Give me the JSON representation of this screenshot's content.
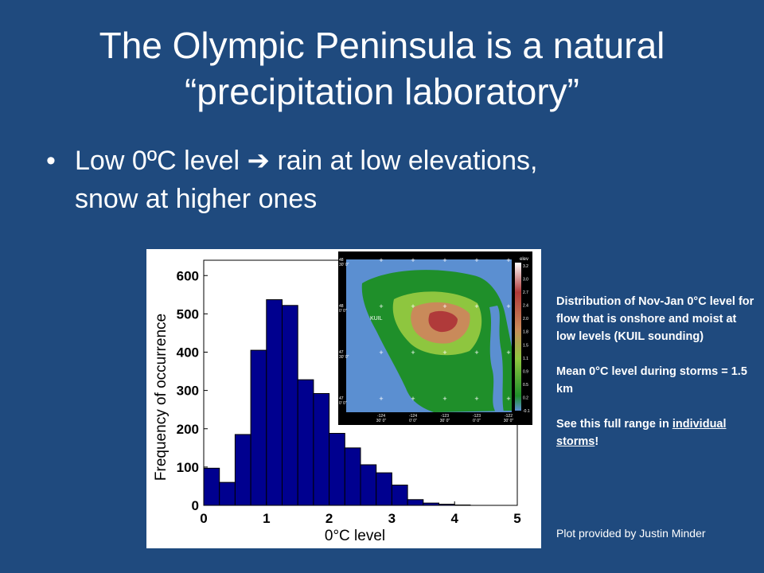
{
  "slide": {
    "title_line1": "The Olympic Peninsula is a natural",
    "title_line2": "“precipitation laboratory”",
    "bullet_symbol": "•",
    "bullet_line1_a": "Low 0ºC level",
    "bullet_arrow": "➔",
    "bullet_line1_b": "rain at low elevations,",
    "bullet_line2": "snow at higher ones"
  },
  "notes": {
    "para1": "Distribution of Nov-Jan 0°C level for flow that is onshore and moist at low levels (KUIL sounding)",
    "para2": "Mean 0°C level during storms = 1.5 km",
    "para3_link": "individual storms",
    "para3_pre": "See this full range in ",
    "para3_post": "!",
    "credit": "Plot provided by Justin Minder"
  },
  "chart_data": {
    "type": "bar",
    "xlabel": "0°C level",
    "ylabel": "Frequency of occurrence",
    "xlim": [
      0,
      5
    ],
    "ylim": [
      0,
      640
    ],
    "xticks": [
      0,
      1,
      2,
      3,
      4,
      5
    ],
    "yticks": [
      0,
      100,
      200,
      300,
      400,
      500,
      600
    ],
    "bin_width": 0.25,
    "bin_starts": [
      0,
      0.25,
      0.5,
      0.75,
      1.0,
      1.25,
      1.5,
      1.75,
      2.0,
      2.25,
      2.5,
      2.75,
      3.0,
      3.25,
      3.5,
      3.75,
      4.0
    ],
    "values": [
      97,
      60,
      185,
      405,
      537,
      522,
      328,
      292,
      188,
      150,
      106,
      85,
      53,
      15,
      6,
      3,
      1
    ],
    "bar_color": "#00008f",
    "grid": false
  },
  "map_inset": {
    "label_kuil": "KUIL",
    "colorbar_title": "elev",
    "colorbar_ticks": [
      "3.2",
      "3.0",
      "2.7",
      "2.4",
      "2.0",
      "1.8",
      "1.5",
      "1.1",
      "0.9",
      "0.5",
      "0.2",
      "-0.1"
    ],
    "lat_labels": [
      "48\n30' 0\"",
      "48\n0' 0\"",
      "47\n30' 0\"",
      "47\n0' 0\""
    ],
    "lon_labels": [
      "-124\n30' 0\"",
      "-124\n0' 0\"",
      "-123\n30' 0\"",
      "-123\n0' 0\"",
      "-122\n30' 0\""
    ],
    "colors": {
      "ocean": "#5b8fd1",
      "lowland": "#1f8f2a",
      "mid": "#8ec63f",
      "high": "#c98a5a",
      "peak": "#b03a3a"
    }
  }
}
